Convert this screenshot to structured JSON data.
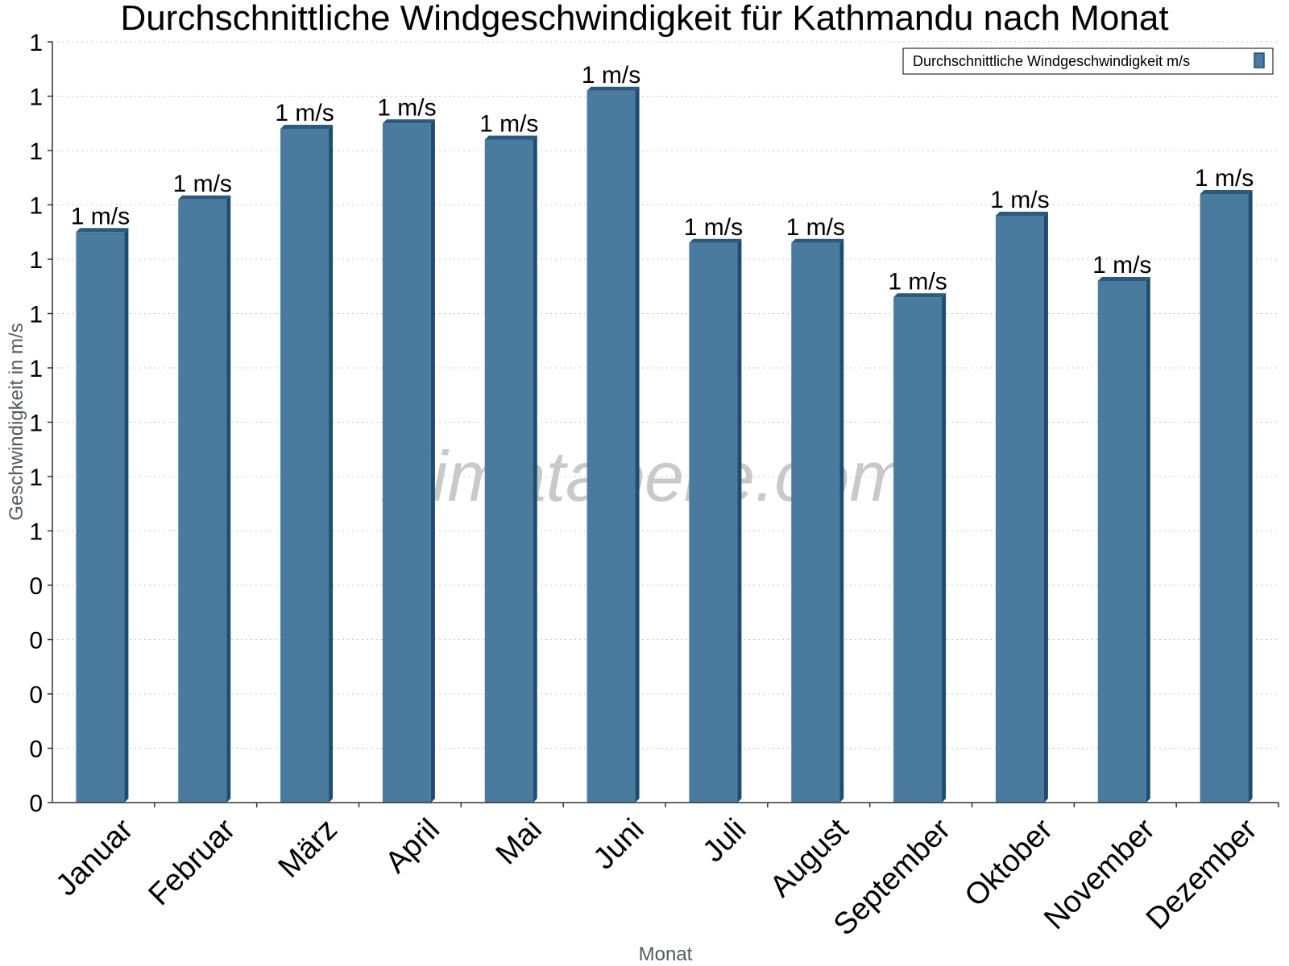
{
  "watermark": "klimatabelle.com",
  "colors": {
    "bar_front": "#4a7a9e",
    "bar_side": "#1d4d70",
    "bar_top": "#2a5a7e",
    "grid": "#c8c8c8",
    "axis": "#333333"
  },
  "chart_data": {
    "type": "bar",
    "title": "Durchschnittliche Windgeschwindigkeit für Kathmandu nach Monat",
    "xlabel": "Monat",
    "ylabel": "Geschwindigkeit in m/s",
    "legend": "Durchschnittliche Windgeschwindigkeit m/s",
    "legend_position": "top-right",
    "grid": true,
    "ylim": [
      0,
      1.4
    ],
    "y_ticks": [
      {
        "value": 0.0,
        "label": "0"
      },
      {
        "value": 0.1,
        "label": "0"
      },
      {
        "value": 0.2,
        "label": "0"
      },
      {
        "value": 0.3,
        "label": "0"
      },
      {
        "value": 0.4,
        "label": "0"
      },
      {
        "value": 0.5,
        "label": "1"
      },
      {
        "value": 0.6,
        "label": "1"
      },
      {
        "value": 0.7,
        "label": "1"
      },
      {
        "value": 0.8,
        "label": "1"
      },
      {
        "value": 0.9,
        "label": "1"
      },
      {
        "value": 1.0,
        "label": "1"
      },
      {
        "value": 1.1,
        "label": "1"
      },
      {
        "value": 1.2,
        "label": "1"
      },
      {
        "value": 1.3,
        "label": "1"
      },
      {
        "value": 1.4,
        "label": "1"
      }
    ],
    "categories": [
      "Januar",
      "Februar",
      "März",
      "April",
      "Mai",
      "Juni",
      "Juli",
      "August",
      "September",
      "Oktober",
      "November",
      "Dezember"
    ],
    "values": [
      1.05,
      1.11,
      1.24,
      1.25,
      1.22,
      1.31,
      1.03,
      1.03,
      0.93,
      1.08,
      0.96,
      1.12
    ],
    "data_labels": [
      "1 m/s",
      "1 m/s",
      "1 m/s",
      "1 m/s",
      "1 m/s",
      "1 m/s",
      "1 m/s",
      "1 m/s",
      "1 m/s",
      "1 m/s",
      "1 m/s",
      "1 m/s"
    ]
  }
}
